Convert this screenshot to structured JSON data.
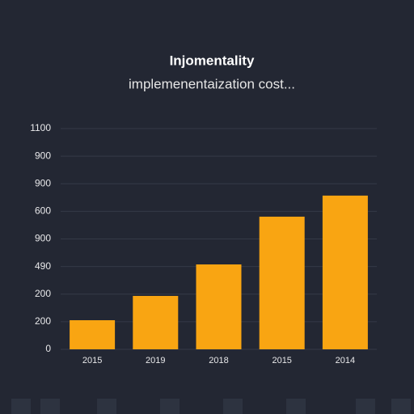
{
  "chart_data": {
    "type": "bar",
    "title": "Injomentality",
    "subtitle": "implemenentaization cost...",
    "categories": [
      "2015",
      "2019",
      "2018",
      "2015",
      "2014"
    ],
    "values": [
      145,
      266,
      423,
      661,
      766
    ],
    "color": "#f9a512",
    "ylim": [
      0,
      1100
    ],
    "yticks": [
      0,
      {
        "value": 137.5,
        "label": "200"
      },
      {
        "value": 275,
        "label": "200"
      },
      {
        "value": 412.5,
        "label": "490"
      },
      {
        "value": 550,
        "label": "900"
      },
      {
        "value": 687.5,
        "label": "600"
      },
      {
        "value": 825,
        "label": "900"
      },
      {
        "value": 962.5,
        "label": "900"
      },
      1100
    ],
    "grid": true
  }
}
